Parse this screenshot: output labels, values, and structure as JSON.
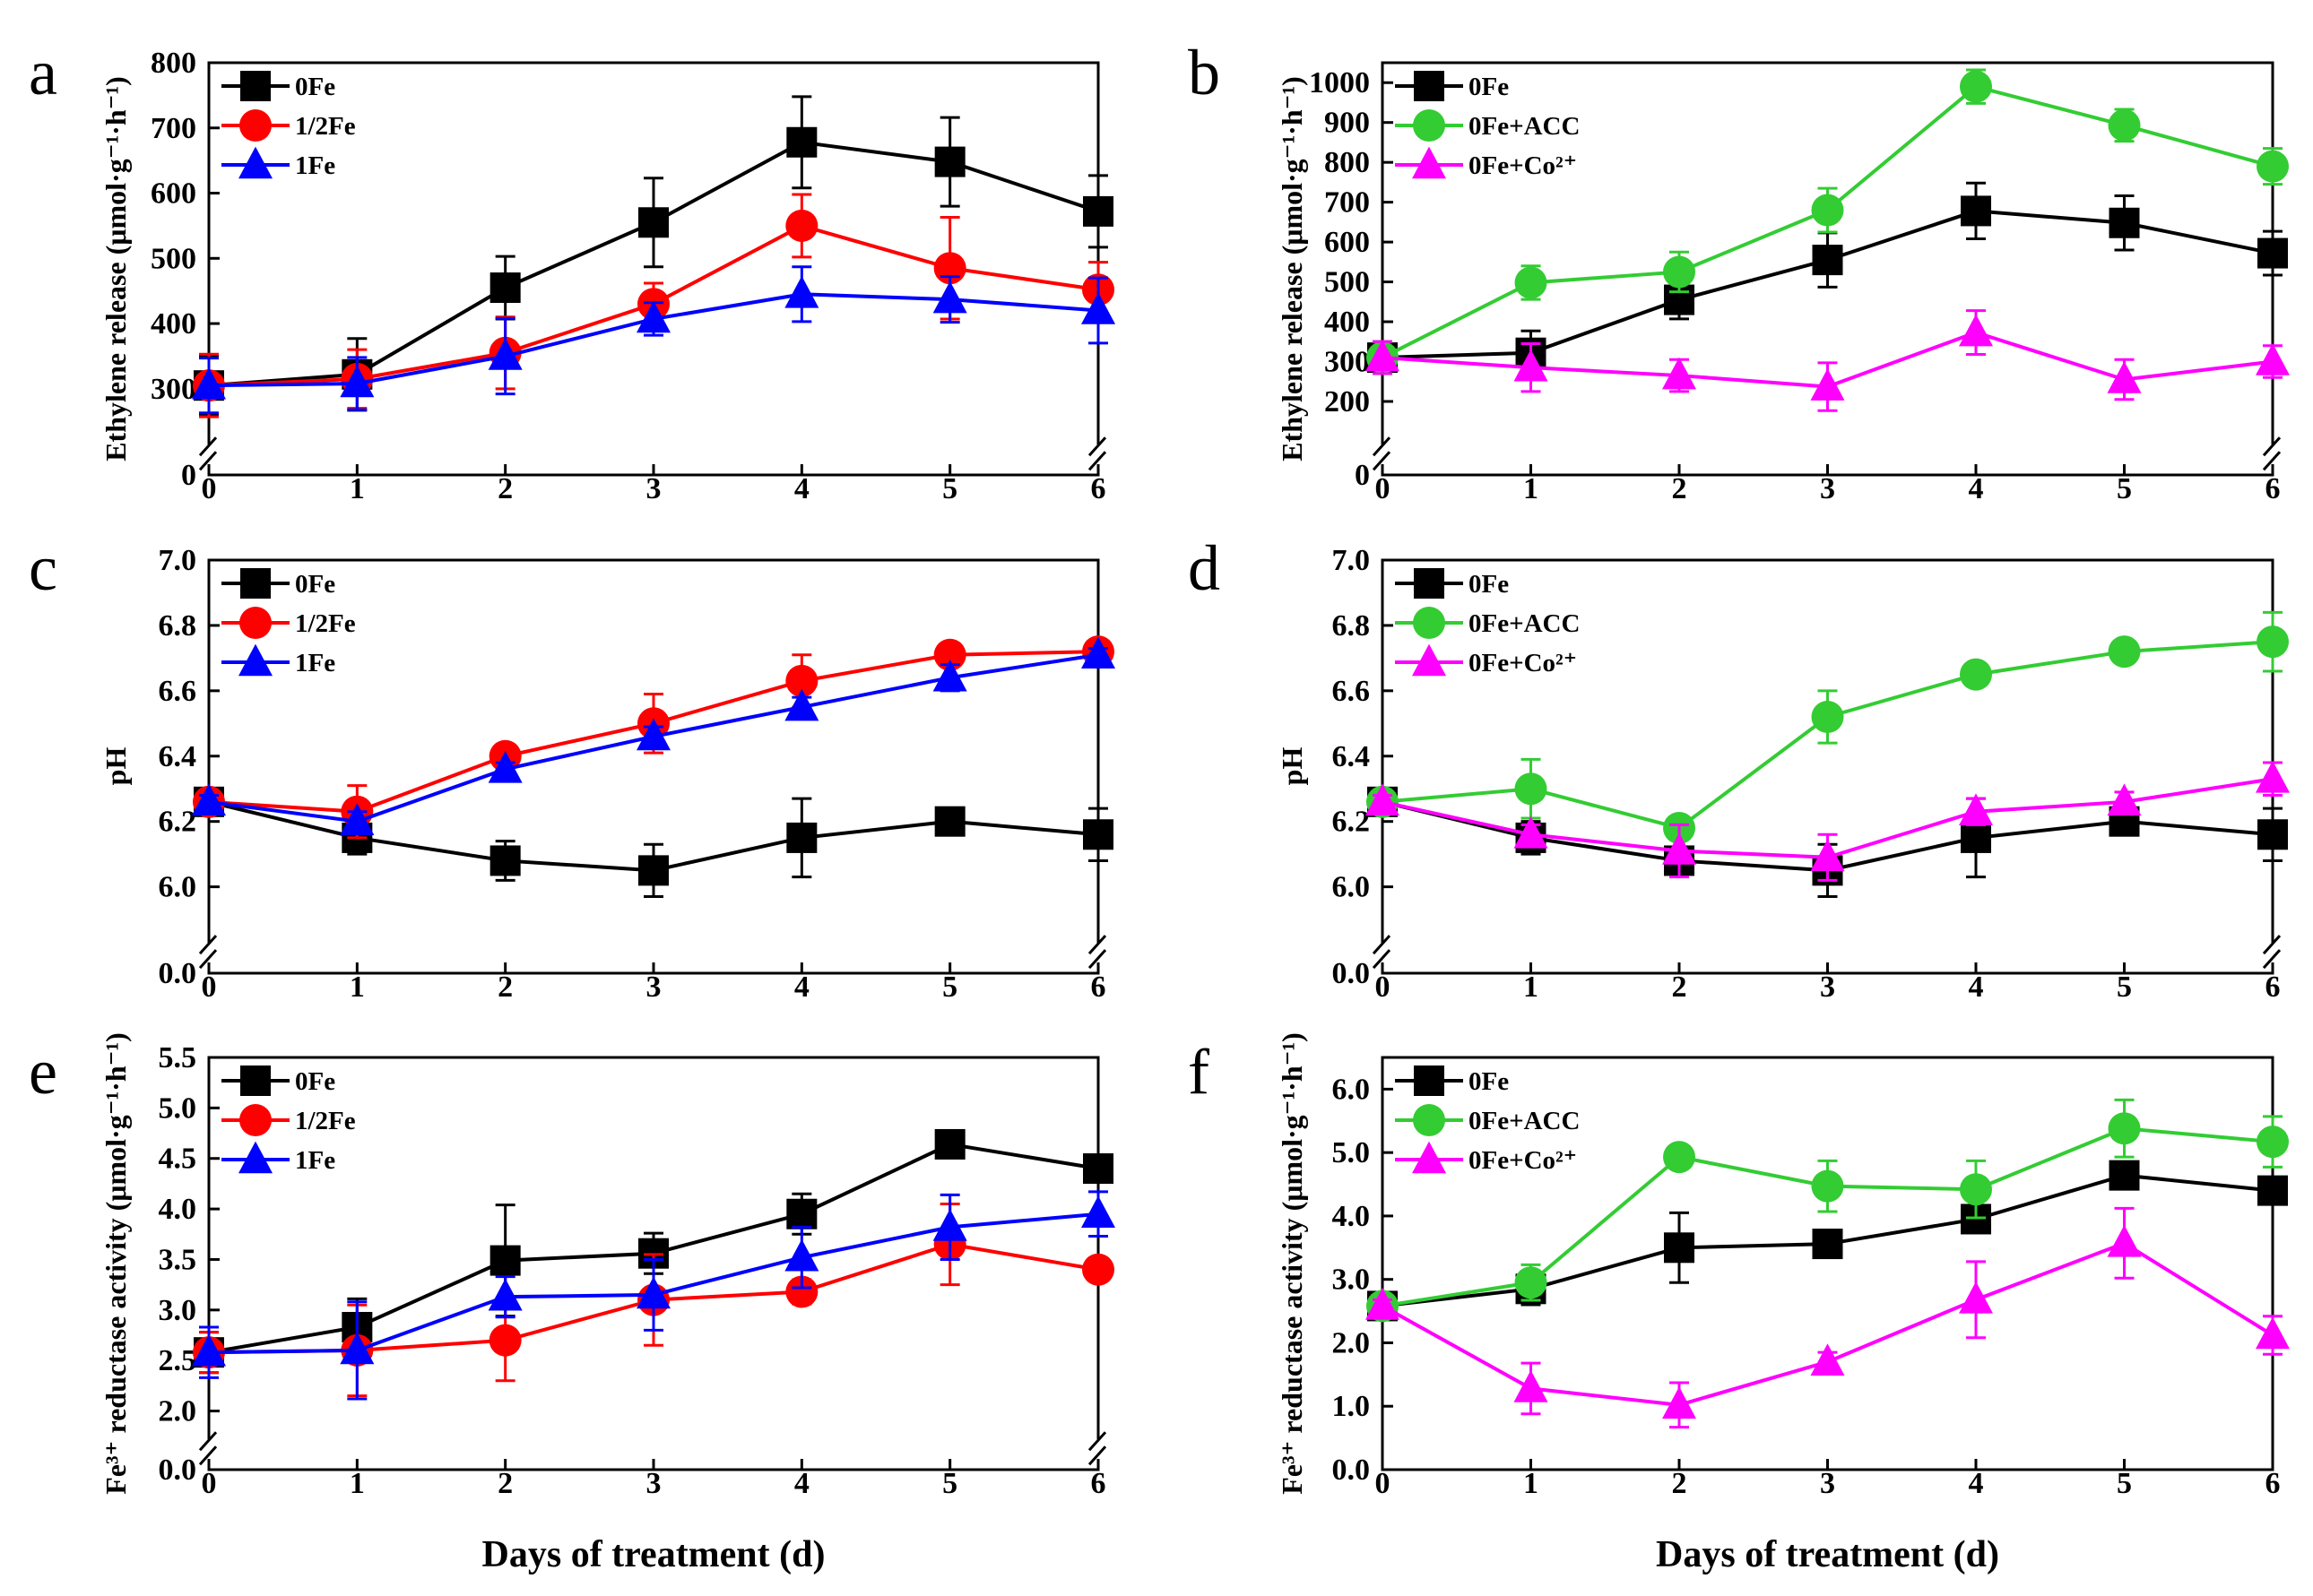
{
  "figure": {
    "xlabel": "Days of treatment (d)"
  },
  "chart_data": [
    {
      "id": "a",
      "letter": "a",
      "type": "line",
      "ylabel": "Ethylene release (μmol·g⁻¹·h⁻¹)",
      "xlabel": "Days of treatment (d)",
      "x": [
        0,
        1,
        2,
        3,
        4,
        5,
        6
      ],
      "xlim": [
        0,
        6
      ],
      "ylim": [
        0,
        800
      ],
      "break_range": [
        0,
        250
      ],
      "yticks": [
        0,
        300,
        400,
        500,
        600,
        700,
        800
      ],
      "ytick_labels": [
        "0",
        "300",
        "400",
        "500",
        "600",
        "700",
        "800"
      ],
      "series": [
        {
          "name": "0Fe",
          "color": "#000000",
          "marker": "square",
          "values": [
            305,
            322,
            455,
            555,
            678,
            648,
            572
          ],
          "errors": [
            45,
            55,
            48,
            68,
            70,
            68,
            55
          ]
        },
        {
          "name": "1/2Fe",
          "color": "#ff0000",
          "marker": "circle",
          "values": [
            305,
            315,
            355,
            430,
            550,
            485,
            452
          ],
          "errors": [
            48,
            45,
            55,
            32,
            48,
            78,
            42
          ]
        },
        {
          "name": "1Fe",
          "color": "#0000ff",
          "marker": "triangle",
          "values": [
            305,
            308,
            350,
            407,
            445,
            437,
            420
          ],
          "errors": [
            42,
            40,
            58,
            25,
            42,
            35,
            50
          ]
        }
      ]
    },
    {
      "id": "b",
      "letter": "b",
      "type": "line",
      "ylabel": "Ethylene release (μmol·g⁻¹·h⁻¹)",
      "xlabel": "Days of treatment (d)",
      "x": [
        0,
        1,
        2,
        3,
        4,
        5,
        6
      ],
      "xlim": [
        0,
        6
      ],
      "ylim": [
        0,
        1050
      ],
      "break_range": [
        0,
        150
      ],
      "yticks": [
        0,
        200,
        300,
        400,
        500,
        600,
        700,
        800,
        900,
        1000
      ],
      "ytick_labels": [
        "0",
        "200",
        "300",
        "400",
        "500",
        "600",
        "700",
        "800",
        "900",
        "1000"
      ],
      "series": [
        {
          "name": "0Fe",
          "color": "#000000",
          "marker": "square",
          "values": [
            310,
            322,
            455,
            555,
            678,
            648,
            572
          ],
          "errors": [
            40,
            55,
            48,
            68,
            70,
            68,
            55
          ]
        },
        {
          "name": "0Fe+ACC",
          "color": "#33cc33",
          "marker": "circle",
          "values": [
            310,
            498,
            525,
            680,
            990,
            893,
            790
          ],
          "errors": [
            40,
            42,
            50,
            55,
            42,
            40,
            45
          ]
        },
        {
          "name": "0Fe+Co²⁺",
          "color": "#ff00ff",
          "marker": "triangle",
          "values": [
            310,
            285,
            265,
            237,
            373,
            255,
            300
          ],
          "errors": [
            40,
            60,
            40,
            60,
            55,
            50,
            40
          ]
        }
      ]
    },
    {
      "id": "c",
      "letter": "c",
      "type": "line",
      "ylabel": "pH",
      "xlabel": "Days of treatment (d)",
      "x": [
        0,
        1,
        2,
        3,
        4,
        5,
        6
      ],
      "xlim": [
        0,
        6
      ],
      "ylim": [
        0,
        7.0
      ],
      "break_range": [
        0,
        5.9
      ],
      "yticks": [
        0,
        6.0,
        6.2,
        6.4,
        6.6,
        6.8,
        7.0
      ],
      "ytick_labels": [
        "0.0",
        "6.0",
        "6.2",
        "6.4",
        "6.6",
        "6.8",
        "7.0"
      ],
      "series": [
        {
          "name": "0Fe",
          "color": "#000000",
          "marker": "square",
          "values": [
            6.26,
            6.15,
            6.08,
            6.05,
            6.15,
            6.2,
            6.16
          ],
          "errors": [
            0.03,
            0.05,
            0.06,
            0.08,
            0.12,
            0.02,
            0.08
          ]
        },
        {
          "name": "1/2Fe",
          "color": "#ff0000",
          "marker": "circle",
          "values": [
            6.26,
            6.23,
            6.4,
            6.5,
            6.63,
            6.71,
            6.72
          ],
          "errors": [
            0.02,
            0.08,
            0.02,
            0.09,
            0.08,
            0.03,
            0.02
          ]
        },
        {
          "name": "1Fe",
          "color": "#0000ff",
          "marker": "triangle",
          "values": [
            6.26,
            6.2,
            6.36,
            6.46,
            6.55,
            6.64,
            6.71
          ],
          "errors": [
            0.02,
            0.03,
            0.02,
            0.03,
            0.03,
            0.04,
            0.02
          ]
        }
      ]
    },
    {
      "id": "d",
      "letter": "d",
      "type": "line",
      "ylabel": "pH",
      "xlabel": "Days of treatment (d)",
      "x": [
        0,
        1,
        2,
        3,
        4,
        5,
        6
      ],
      "xlim": [
        0,
        6
      ],
      "ylim": [
        0,
        7.0
      ],
      "break_range": [
        0,
        5.9
      ],
      "yticks": [
        0,
        6.0,
        6.2,
        6.4,
        6.6,
        6.8,
        7.0
      ],
      "ytick_labels": [
        "0.0",
        "6.0",
        "6.2",
        "6.4",
        "6.6",
        "6.8",
        "7.0"
      ],
      "series": [
        {
          "name": "0Fe",
          "color": "#000000",
          "marker": "square",
          "values": [
            6.26,
            6.15,
            6.08,
            6.05,
            6.15,
            6.2,
            6.16
          ],
          "errors": [
            0.02,
            0.05,
            0.03,
            0.08,
            0.12,
            0.02,
            0.08
          ]
        },
        {
          "name": "0Fe+ACC",
          "color": "#33cc33",
          "marker": "circle",
          "values": [
            6.26,
            6.3,
            6.18,
            6.52,
            6.65,
            6.72,
            6.75
          ],
          "errors": [
            0.02,
            0.09,
            0.02,
            0.08,
            0.02,
            0.02,
            0.09
          ]
        },
        {
          "name": "0Fe+Co²⁺",
          "color": "#ff00ff",
          "marker": "triangle",
          "values": [
            6.26,
            6.16,
            6.11,
            6.09,
            6.23,
            6.26,
            6.33
          ],
          "errors": [
            0.02,
            0.03,
            0.08,
            0.07,
            0.04,
            0.03,
            0.05
          ]
        }
      ]
    },
    {
      "id": "e",
      "letter": "e",
      "type": "line",
      "ylabel": "Fe³⁺ reductase activity (μmol·g⁻¹·h⁻¹)",
      "xlabel": "Days of treatment (d)",
      "x": [
        0,
        1,
        2,
        3,
        4,
        5,
        6
      ],
      "xlim": [
        0,
        6
      ],
      "ylim": [
        0,
        5.5
      ],
      "break_range": [
        0,
        1.95
      ],
      "yticks": [
        0,
        2.0,
        2.5,
        3.0,
        3.5,
        4.0,
        4.5,
        5.0,
        5.5
      ],
      "ytick_labels": [
        "0.0",
        "2.0",
        "2.5",
        "3.0",
        "3.5",
        "4.0",
        "4.5",
        "5.0",
        "5.5"
      ],
      "series": [
        {
          "name": "0Fe",
          "color": "#000000",
          "marker": "square",
          "values": [
            2.58,
            2.83,
            3.49,
            3.56,
            3.95,
            4.64,
            4.4
          ],
          "errors": [
            0.2,
            0.28,
            0.55,
            0.2,
            0.2,
            0.03,
            0.05
          ]
        },
        {
          "name": "1/2Fe",
          "color": "#ff0000",
          "marker": "circle",
          "values": [
            2.58,
            2.6,
            2.7,
            3.1,
            3.18,
            3.65,
            3.4
          ],
          "errors": [
            0.2,
            0.45,
            0.4,
            0.45,
            0.12,
            0.4,
            0.1
          ]
        },
        {
          "name": "1Fe",
          "color": "#0000ff",
          "marker": "triangle",
          "values": [
            2.58,
            2.6,
            3.13,
            3.15,
            3.52,
            3.82,
            3.95
          ],
          "errors": [
            0.25,
            0.48,
            0.2,
            0.35,
            0.3,
            0.32,
            0.22
          ]
        }
      ]
    },
    {
      "id": "f",
      "letter": "f",
      "type": "line",
      "ylabel": "Fe³⁺ reductase activity (μmol·g⁻¹·h⁻¹)",
      "xlabel": "Days of treatment (d)",
      "x": [
        0,
        1,
        2,
        3,
        4,
        5,
        6
      ],
      "xlim": [
        0,
        6
      ],
      "ylim": [
        0,
        6.5
      ],
      "break_range": null,
      "yticks": [
        0,
        1.0,
        2.0,
        3.0,
        4.0,
        5.0,
        6.0
      ],
      "ytick_labels": [
        "0.0",
        "1.0",
        "2.0",
        "3.0",
        "4.0",
        "5.0",
        "6.0"
      ],
      "series": [
        {
          "name": "0Fe",
          "color": "#000000",
          "marker": "square",
          "values": [
            2.58,
            2.85,
            3.5,
            3.56,
            3.95,
            4.64,
            4.4
          ],
          "errors": [
            0.1,
            0.25,
            0.55,
            0.2,
            0.2,
            0.08,
            0.08
          ]
        },
        {
          "name": "0Fe+ACC",
          "color": "#33cc33",
          "marker": "circle",
          "values": [
            2.58,
            2.95,
            4.93,
            4.47,
            4.42,
            5.38,
            5.17
          ],
          "errors": [
            0.1,
            0.28,
            0.15,
            0.4,
            0.45,
            0.45,
            0.4
          ]
        },
        {
          "name": "0Fe+Co²⁺",
          "color": "#ff00ff",
          "marker": "triangle",
          "values": [
            2.58,
            1.28,
            1.02,
            1.7,
            2.68,
            3.57,
            2.12
          ],
          "errors": [
            0.1,
            0.4,
            0.35,
            0.15,
            0.6,
            0.55,
            0.3
          ]
        }
      ]
    }
  ]
}
